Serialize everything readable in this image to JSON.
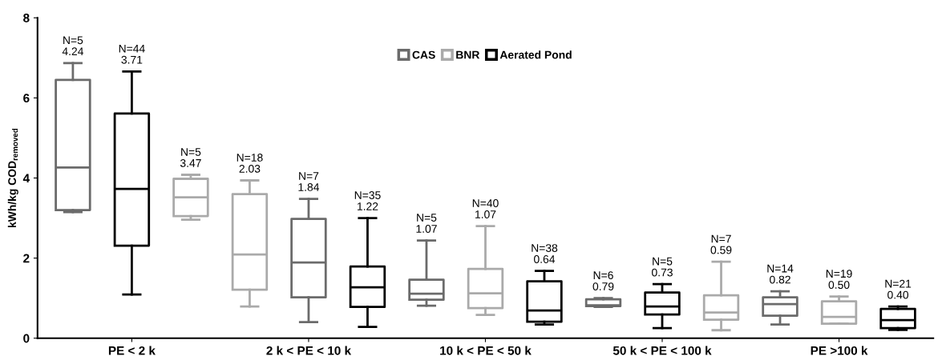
{
  "chart_data": {
    "type": "box",
    "ylabel": "kWh/kg COD$_{removed}$",
    "categories": [
      null,
      "PE < 2 k",
      null,
      null,
      "2 k < PE < 10 k",
      null,
      null,
      "10 k < PE < 50 k",
      null,
      null,
      "50 k < PE < 100 k",
      null,
      null,
      "PE >100 k",
      null
    ],
    "ylim": [
      0,
      8
    ],
    "yticks": [
      0,
      2,
      4,
      6,
      8
    ],
    "grid": false,
    "legend": "top",
    "series": [
      {
        "name": "CAS",
        "color": "#6b6b6b",
        "boxes": [
          {
            "low": 3.15,
            "q1": 3.2,
            "median": 4.26,
            "q3": 6.45,
            "high": 6.87
          },
          null,
          null,
          null,
          {
            "low": 0.4,
            "q1": 1.02,
            "median": 1.89,
            "q3": 2.98,
            "high": 3.48
          },
          null,
          {
            "low": 0.81,
            "q1": 0.96,
            "median": 1.11,
            "q3": 1.46,
            "high": 2.44
          },
          null,
          null,
          {
            "low": 0.78,
            "q1": 0.8,
            "median": 0.82,
            "q3": 0.97,
            "high": 1.0
          },
          null,
          null,
          {
            "low": 0.34,
            "q1": 0.56,
            "median": 0.85,
            "q3": 1.02,
            "high": 1.17
          },
          null,
          null
        ],
        "value_labels": [
          "N=5\n4.24",
          null,
          null,
          null,
          "N=7\n1.84",
          null,
          "N=5\n1.07",
          null,
          null,
          "N=6\n0.79",
          null,
          null,
          "N=14\n0.82",
          null,
          null
        ]
      },
      {
        "name": "BNR",
        "color": "#aaaaaa",
        "boxes": [
          null,
          null,
          {
            "low": 2.96,
            "q1": 3.05,
            "median": 3.52,
            "q3": 3.98,
            "high": 4.08
          },
          {
            "low": 0.79,
            "q1": 1.21,
            "median": 2.09,
            "q3": 3.6,
            "high": 3.94
          },
          null,
          null,
          null,
          {
            "low": 0.58,
            "q1": 0.75,
            "median": 1.12,
            "q3": 1.73,
            "high": 2.8
          },
          null,
          null,
          null,
          {
            "low": 0.2,
            "q1": 0.46,
            "median": 0.64,
            "q3": 1.07,
            "high": 1.91
          },
          null,
          {
            "low": 0.36,
            "q1": 0.36,
            "median": 0.53,
            "q3": 0.92,
            "high": 1.04
          },
          null
        ],
        "value_labels": [
          null,
          null,
          "N=5\n3.47",
          "N=18\n2.03",
          null,
          null,
          null,
          "N=40\n1.07",
          null,
          null,
          null,
          "N=7\n0.59",
          null,
          "N=19\n0.50",
          null
        ]
      },
      {
        "name": "Aerated Pond",
        "color": "#000000",
        "boxes": [
          null,
          {
            "low": 1.09,
            "q1": 2.31,
            "median": 3.73,
            "q3": 5.61,
            "high": 6.66
          },
          null,
          null,
          null,
          {
            "low": 0.28,
            "q1": 0.78,
            "median": 1.27,
            "q3": 1.79,
            "high": 3.0
          },
          null,
          null,
          {
            "low": 0.34,
            "q1": 0.41,
            "median": 0.69,
            "q3": 1.42,
            "high": 1.68
          },
          null,
          {
            "low": 0.25,
            "q1": 0.59,
            "median": 0.79,
            "q3": 1.14,
            "high": 1.35
          },
          null,
          null,
          null,
          {
            "low": 0.21,
            "q1": 0.25,
            "median": 0.45,
            "q3": 0.73,
            "high": 0.79
          }
        ],
        "value_labels": [
          null,
          "N=44\n3.71",
          null,
          null,
          null,
          "N=35\n1.22",
          null,
          null,
          "N=38\n0.64",
          null,
          "N=5\n0.73",
          null,
          null,
          null,
          "N=21\n0.40"
        ]
      }
    ]
  }
}
